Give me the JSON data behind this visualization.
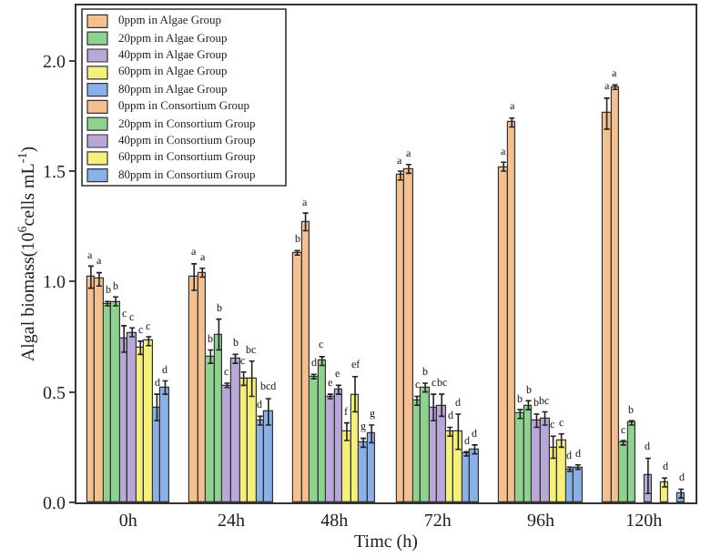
{
  "chart_data": {
    "type": "bar",
    "xlabel": "Timc (h)",
    "ylabel": "Algal biomass(10$^{6}$cells mL$^{-1}$)",
    "categories": [
      "0h",
      "24h",
      "48h",
      "72h",
      "96h",
      "120h"
    ],
    "ylim": [
      0,
      2.25
    ],
    "yticks": [
      {
        "value": 0,
        "label": "0.0"
      },
      {
        "value": 0.5,
        "label": "0.5"
      },
      {
        "value": 1.0,
        "label": "1.0"
      },
      {
        "value": 1.5,
        "label": "1.5"
      },
      {
        "value": 2.0,
        "label": "2.0"
      }
    ],
    "legend": "top left",
    "series": [
      {
        "name": "0ppm in Algae Group",
        "color": "#f5c08f",
        "values": [
          1.02,
          1.02,
          1.13,
          1.48,
          1.52,
          1.76
        ],
        "errors": [
          0.05,
          0.06,
          0.01,
          0.02,
          0.02,
          0.07
        ],
        "value_labels": [
          "a",
          "a",
          "b",
          "a",
          "a",
          "a"
        ]
      },
      {
        "name": "20ppm in Algae Group",
        "color": "#8fd18f",
        "values": [
          0.9,
          0.66,
          0.57,
          0.46,
          0.4,
          0.27
        ],
        "errors": [
          0.01,
          0.03,
          0.01,
          0.02,
          0.02,
          0.01
        ],
        "value_labels": [
          "b",
          "b",
          "d",
          "c",
          "b",
          "c"
        ]
      },
      {
        "name": "40ppm in Algae Group",
        "color": "#b8a8d8",
        "values": [
          0.74,
          0.53,
          0.48,
          0.43,
          0.37,
          null
        ],
        "errors": [
          0.06,
          0.01,
          0.01,
          0.06,
          0.03,
          null
        ],
        "value_labels": [
          "c",
          "c",
          "e",
          "c",
          "b",
          null
        ]
      },
      {
        "name": "60ppm in Algae Group",
        "color": "#f5f07a",
        "values": [
          0.7,
          0.56,
          0.32,
          0.32,
          0.25,
          null
        ],
        "errors": [
          0.03,
          0.03,
          0.04,
          0.02,
          0.05,
          null
        ],
        "value_labels": [
          "c",
          "c",
          "f",
          "d",
          "c",
          null
        ]
      },
      {
        "name": "80ppm in Algae Group",
        "color": "#8ab0e8",
        "values": [
          0.43,
          0.37,
          0.27,
          0.22,
          0.15,
          null
        ],
        "errors": [
          0.06,
          0.02,
          0.02,
          0.01,
          0.01,
          null
        ],
        "value_labels": [
          "d",
          "d",
          "g",
          "d",
          "d",
          null
        ]
      },
      {
        "name": "0ppm in Consortium Group",
        "color": "#f5c08f",
        "values": [
          1.01,
          1.04,
          1.27,
          1.51,
          1.72,
          1.88
        ],
        "errors": [
          0.03,
          0.02,
          0.04,
          0.02,
          0.02,
          0.01
        ],
        "value_labels": [
          "a",
          "a",
          "a",
          "a",
          "a",
          "a"
        ]
      },
      {
        "name": "20ppm in Consortium Group",
        "color": "#8fd18f",
        "values": [
          0.91,
          0.76,
          0.64,
          0.52,
          0.44,
          0.36
        ],
        "errors": [
          0.02,
          0.07,
          0.02,
          0.02,
          0.02,
          0.01
        ],
        "value_labels": [
          "b",
          "b",
          "c",
          "b",
          "b",
          "b"
        ]
      },
      {
        "name": "40ppm in Consortium Group",
        "color": "#b8a8d8",
        "values": [
          0.77,
          0.65,
          0.51,
          0.44,
          0.38,
          0.12
        ],
        "errors": [
          0.02,
          0.02,
          0.02,
          0.05,
          0.03,
          0.08
        ],
        "value_labels": [
          "c",
          "b",
          "e",
          "bc",
          "bc",
          "d"
        ]
      },
      {
        "name": "60ppm in Consortium Group",
        "color": "#f5f07a",
        "values": [
          0.73,
          0.56,
          0.49,
          0.32,
          0.28,
          0.09
        ],
        "errors": [
          0.02,
          0.08,
          0.08,
          0.08,
          0.03,
          0.02
        ],
        "value_labels": [
          "c",
          "bc",
          "ef",
          "d",
          "c",
          "d"
        ]
      },
      {
        "name": "80ppm in Consortium Group",
        "color": "#8ab0e8",
        "values": [
          0.52,
          0.41,
          0.31,
          0.24,
          0.16,
          0.04
        ],
        "errors": [
          0.03,
          0.06,
          0.04,
          0.02,
          0.01,
          0.02
        ],
        "value_labels": [
          "d",
          "bcd",
          "g",
          "d",
          "d",
          "d"
        ]
      }
    ]
  }
}
